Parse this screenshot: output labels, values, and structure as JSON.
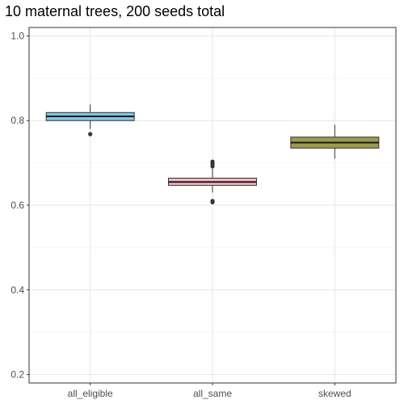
{
  "chart_data": {
    "type": "boxplot",
    "title": "10 maternal trees, 200 seeds total",
    "xlabel": "",
    "ylabel": "",
    "categories": [
      "all_eligible",
      "all_same",
      "skewed"
    ],
    "ylim": [
      0.18,
      1.02
    ],
    "yticks": [
      0.2,
      0.4,
      0.6,
      0.8,
      1.0
    ],
    "ytick_labels": [
      "0.2",
      "0.4",
      "0.6",
      "0.8",
      "1.0"
    ],
    "grid": true,
    "legend": "none",
    "boxes": [
      {
        "category": "all_eligible",
        "color": "#7ec8e3",
        "q1": 0.8,
        "median": 0.81,
        "q3": 0.819,
        "whisker_low": 0.78,
        "whisker_high": 0.838,
        "outliers": [
          0.768
        ]
      },
      {
        "category": "all_same",
        "color": "#f7b6c2",
        "q1": 0.647,
        "median": 0.655,
        "q3": 0.664,
        "whisker_low": 0.63,
        "whisker_high": 0.688,
        "outliers": [
          0.692,
          0.698,
          0.703,
          0.607,
          0.61
        ]
      },
      {
        "category": "skewed",
        "color": "#9c9a4e",
        "q1": 0.735,
        "median": 0.748,
        "q3": 0.761,
        "whisker_low": 0.71,
        "whisker_high": 0.79,
        "outliers": []
      }
    ]
  }
}
